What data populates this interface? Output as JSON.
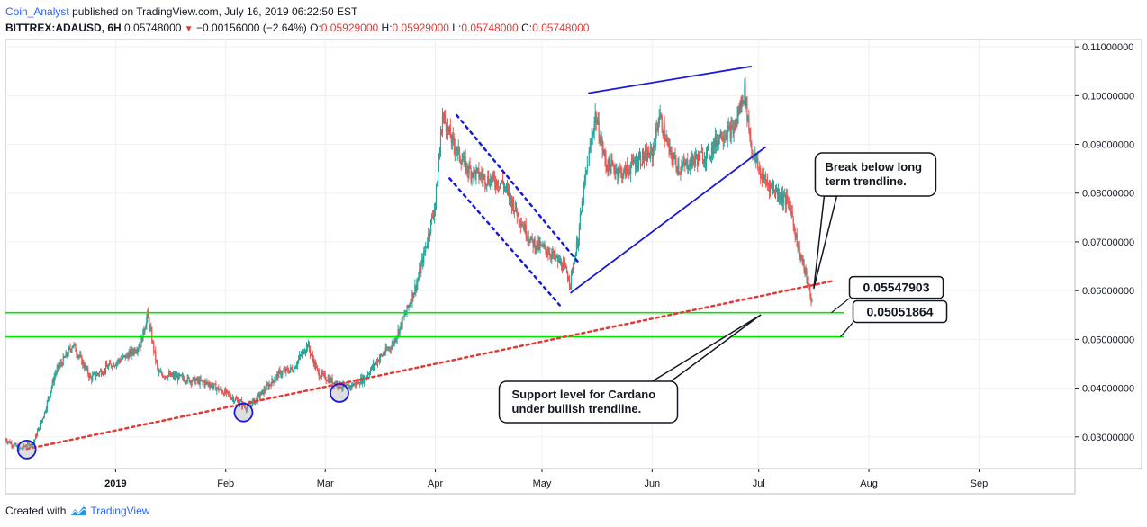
{
  "header": {
    "author": "Coin_Analyst",
    "published": "published on TradingView.com, July 16, 2019 06:22:50 EST",
    "symbol": "BITTREX:ADAUSD, 6H",
    "last": "0.05748000",
    "change_arrow": "▼",
    "change": "−0.00156000 (−2.64%)",
    "o_label": "O:",
    "o": "0.05929000",
    "h_label": "H:",
    "h": "0.05929000",
    "l_label": "L:",
    "l": "0.05748000",
    "c_label": "C:",
    "c": "0.05748000"
  },
  "footer": {
    "created_with": "Created with",
    "brand": "TradingView",
    "brand_icon": "tradingview-logo-icon"
  },
  "colors": {
    "up_candle": "#26a69a",
    "down_candle": "#ef5350",
    "support_line": "#00e600",
    "trend_line": "#e53935",
    "pattern_line": "#1a1ad6",
    "grid": "#eef0f3"
  },
  "chart_data": {
    "type": "candlestick",
    "symbol": "BITTREX:ADAUSD",
    "interval": "6H",
    "x_ticks": [
      "2019",
      "Feb",
      "Mar",
      "Apr",
      "May",
      "Jun",
      "Jul",
      "Aug",
      "Sep"
    ],
    "x_tick_dates": [
      "2019-01-01",
      "2019-02-01",
      "2019-03-01",
      "2019-04-01",
      "2019-05-01",
      "2019-06-01",
      "2019-07-01",
      "2019-08-01",
      "2019-09-01"
    ],
    "y_ticks": [
      "0.11000000",
      "0.10000000",
      "0.09000000",
      "0.08000000",
      "0.07000000",
      "0.06000000",
      "0.05000000",
      "0.04000000",
      "0.03000000"
    ],
    "y_tick_values": [
      0.11,
      0.1,
      0.09,
      0.08,
      0.07,
      0.06,
      0.05,
      0.04,
      0.03
    ],
    "ylim": [
      0.0235,
      0.1115
    ],
    "xlim": [
      "2018-12-01",
      "2019-09-28"
    ],
    "price_path": [
      [
        "2018-12-01",
        0.0295
      ],
      [
        "2018-12-05",
        0.0275
      ],
      [
        "2018-12-09",
        0.029
      ],
      [
        "2018-12-12",
        0.035
      ],
      [
        "2018-12-15",
        0.043
      ],
      [
        "2018-12-20",
        0.049
      ],
      [
        "2018-12-25",
        0.042
      ],
      [
        "2018-12-29",
        0.044
      ],
      [
        "2019-01-05",
        0.047
      ],
      [
        "2019-01-08",
        0.049
      ],
      [
        "2019-01-10",
        0.055
      ],
      [
        "2019-01-13",
        0.043
      ],
      [
        "2019-01-20",
        0.042
      ],
      [
        "2019-01-27",
        0.041
      ],
      [
        "2019-02-01",
        0.039
      ],
      [
        "2019-02-07",
        0.036
      ],
      [
        "2019-02-10",
        0.038
      ],
      [
        "2019-02-16",
        0.043
      ],
      [
        "2019-02-20",
        0.044
      ],
      [
        "2019-02-24",
        0.049
      ],
      [
        "2019-02-27",
        0.043
      ],
      [
        "2019-03-04",
        0.041
      ],
      [
        "2019-03-07",
        0.04
      ],
      [
        "2019-03-12",
        0.042
      ],
      [
        "2019-03-16",
        0.046
      ],
      [
        "2019-03-20",
        0.049
      ],
      [
        "2019-03-24",
        0.056
      ],
      [
        "2019-03-27",
        0.062
      ],
      [
        "2019-03-29",
        0.068
      ],
      [
        "2019-04-01",
        0.078
      ],
      [
        "2019-04-03",
        0.096
      ],
      [
        "2019-04-06",
        0.09
      ],
      [
        "2019-04-10",
        0.085
      ],
      [
        "2019-04-15",
        0.083
      ],
      [
        "2019-04-20",
        0.082
      ],
      [
        "2019-04-24",
        0.076
      ],
      [
        "2019-04-28",
        0.07
      ],
      [
        "2019-05-03",
        0.068
      ],
      [
        "2019-05-07",
        0.065
      ],
      [
        "2019-05-09",
        0.062
      ],
      [
        "2019-05-11",
        0.07
      ],
      [
        "2019-05-13",
        0.082
      ],
      [
        "2019-05-16",
        0.096
      ],
      [
        "2019-05-19",
        0.086
      ],
      [
        "2019-05-24",
        0.084
      ],
      [
        "2019-05-28",
        0.087
      ],
      [
        "2019-06-01",
        0.088
      ],
      [
        "2019-06-03",
        0.096
      ],
      [
        "2019-06-06",
        0.088
      ],
      [
        "2019-06-09",
        0.085
      ],
      [
        "2019-06-13",
        0.087
      ],
      [
        "2019-06-17",
        0.088
      ],
      [
        "2019-06-20",
        0.092
      ],
      [
        "2019-06-24",
        0.093
      ],
      [
        "2019-06-27",
        0.101
      ],
      [
        "2019-06-29",
        0.089
      ],
      [
        "2019-07-02",
        0.083
      ],
      [
        "2019-07-05",
        0.081
      ],
      [
        "2019-07-08",
        0.079
      ],
      [
        "2019-07-10",
        0.077
      ],
      [
        "2019-07-12",
        0.069
      ],
      [
        "2019-07-14",
        0.064
      ],
      [
        "2019-07-16",
        0.0575
      ]
    ],
    "horizontal_lines": [
      {
        "label": "0.05547903",
        "value": 0.05547903
      },
      {
        "label": "0.05051864",
        "value": 0.05051864
      }
    ],
    "trendline": {
      "start": [
        "2018-12-07",
        0.0275
      ],
      "end": [
        "2019-07-22",
        0.062
      ]
    },
    "circled_lows": [
      {
        "date": "2018-12-07",
        "value": 0.0274
      },
      {
        "date": "2019-02-06",
        "value": 0.035
      },
      {
        "date": "2019-03-05",
        "value": 0.039
      }
    ],
    "channel": {
      "upper": [
        [
          "2019-04-07",
          0.096
        ],
        [
          "2019-05-11",
          0.066
        ]
      ],
      "lower": [
        [
          "2019-04-05",
          0.083
        ],
        [
          "2019-05-06",
          0.057
        ]
      ]
    },
    "wedge": {
      "top": [
        [
          "2019-05-14",
          0.1005
        ],
        [
          "2019-06-29",
          0.106
        ]
      ],
      "bottom": [
        [
          "2019-05-09",
          0.0595
        ],
        [
          "2019-07-03",
          0.0895
        ]
      ]
    },
    "callouts": [
      {
        "text_lines": [
          "Break below long",
          "term trendline."
        ]
      },
      {
        "text_lines": [
          "Support level for Cardano",
          "under bullish trendline."
        ]
      }
    ]
  }
}
